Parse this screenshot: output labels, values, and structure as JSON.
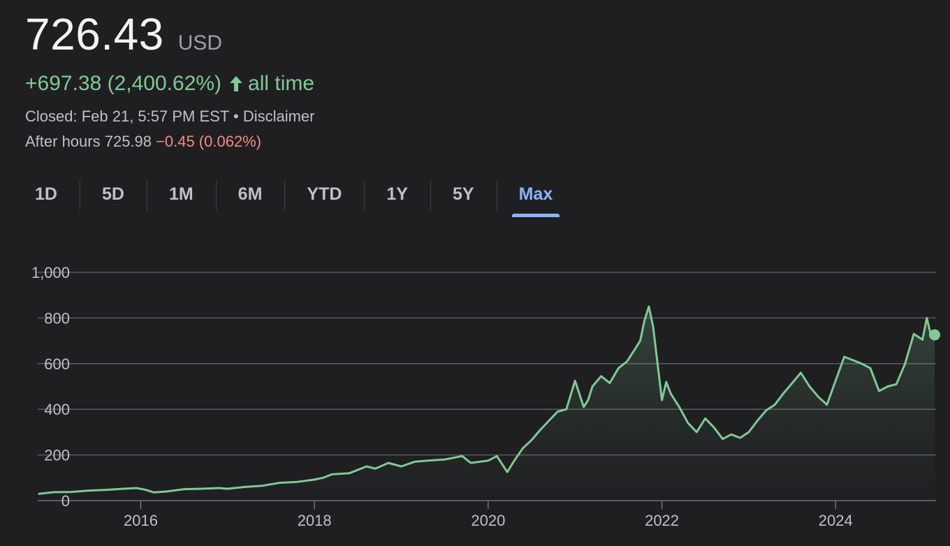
{
  "quote": {
    "price": "726.43",
    "currency": "USD",
    "change": "+697.38 (2,400.62%)",
    "change_period": "all time",
    "closed": "Closed: Feb 21, 5:57 PM EST",
    "disclaimer": "Disclaimer",
    "separator": "•",
    "after_hours_label": "After hours 725.98",
    "after_hours_change": "−0.45 (0.062%)"
  },
  "colors": {
    "positive": "#81c995",
    "negative": "#f28b82",
    "accent": "#8ab4f8",
    "background": "#1f1f22",
    "grid": "#5f6368"
  },
  "tabs": [
    {
      "label": "1D"
    },
    {
      "label": "5D"
    },
    {
      "label": "1M"
    },
    {
      "label": "6M"
    },
    {
      "label": "YTD"
    },
    {
      "label": "1Y"
    },
    {
      "label": "5Y"
    },
    {
      "label": "Max",
      "active": true
    }
  ],
  "chart_data": {
    "type": "area",
    "grid": true,
    "ylim": [
      0,
      1000
    ],
    "xlim": [
      2014.83,
      2025.14
    ],
    "yticks": [
      0,
      200,
      400,
      600,
      800,
      1000
    ],
    "ytick_labels": [
      "0",
      "200",
      "400",
      "600",
      "800",
      "1,000"
    ],
    "xticks": [
      2016,
      2018,
      2020,
      2022,
      2024
    ],
    "xtick_labels": [
      "2016",
      "2018",
      "2020",
      "2022",
      "2024"
    ],
    "series": [
      {
        "x": [
          2014.83,
          2015.0,
          2015.2,
          2015.4,
          2015.6,
          2015.8,
          2015.95,
          2016.05,
          2016.15,
          2016.3,
          2016.5,
          2016.7,
          2016.9,
          2017.0,
          2017.2,
          2017.4,
          2017.6,
          2017.8,
          2018.0,
          2018.1,
          2018.2,
          2018.4,
          2018.6,
          2018.7,
          2018.85,
          2019.0,
          2019.15,
          2019.3,
          2019.5,
          2019.7,
          2019.8,
          2020.0,
          2020.1,
          2020.22,
          2020.3,
          2020.4,
          2020.5,
          2020.6,
          2020.7,
          2020.8,
          2020.9,
          2021.0,
          2021.1,
          2021.15,
          2021.2,
          2021.3,
          2021.4,
          2021.5,
          2021.6,
          2021.7,
          2021.75,
          2021.8,
          2021.85,
          2021.9,
          2022.0,
          2022.05,
          2022.1,
          2022.2,
          2022.3,
          2022.4,
          2022.5,
          2022.6,
          2022.7,
          2022.8,
          2022.9,
          2023.0,
          2023.1,
          2023.2,
          2023.3,
          2023.4,
          2023.5,
          2023.6,
          2023.7,
          2023.8,
          2023.9,
          2024.0,
          2024.1,
          2024.2,
          2024.3,
          2024.4,
          2024.5,
          2024.55,
          2024.6,
          2024.7,
          2024.8,
          2024.9,
          2025.0,
          2025.05,
          2025.1,
          2025.14
        ],
        "values": [
          30,
          37,
          38,
          44,
          47,
          52,
          55,
          48,
          36,
          40,
          50,
          52,
          55,
          52,
          60,
          65,
          78,
          82,
          92,
          100,
          115,
          120,
          150,
          140,
          165,
          150,
          170,
          175,
          180,
          195,
          165,
          175,
          195,
          125,
          175,
          230,
          265,
          310,
          350,
          390,
          400,
          525,
          410,
          440,
          500,
          545,
          515,
          580,
          610,
          670,
          700,
          790,
          850,
          760,
          440,
          520,
          470,
          410,
          340,
          300,
          360,
          320,
          270,
          290,
          275,
          300,
          350,
          395,
          420,
          470,
          515,
          560,
          500,
          455,
          420,
          525,
          630,
          615,
          600,
          580,
          480,
          490,
          500,
          510,
          600,
          730,
          705,
          800,
          720,
          726
        ]
      }
    ]
  }
}
